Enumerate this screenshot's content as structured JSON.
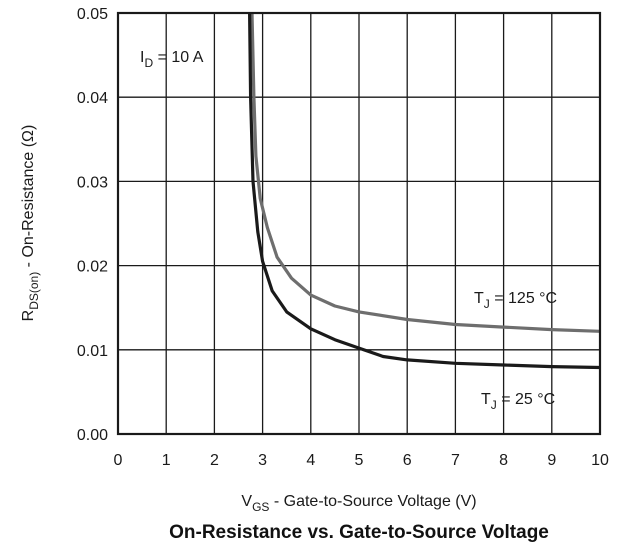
{
  "chart_data": {
    "type": "line",
    "title": "On-Resistance vs. Gate-to-Source Voltage",
    "xlabel": {
      "main": "V",
      "sub": "GS",
      "rest": " - Gate-to-Source Voltage (V)"
    },
    "ylabel": {
      "main": "R",
      "sub": "DS(on)",
      "rest": " - On-Resistance (Ω)"
    },
    "xlim": [
      0,
      10
    ],
    "ylim": [
      0,
      0.05
    ],
    "xticks": [
      "0",
      "1",
      "2",
      "3",
      "4",
      "5",
      "6",
      "7",
      "8",
      "9",
      "10"
    ],
    "yticks": [
      "0.00",
      "0.01",
      "0.02",
      "0.03",
      "0.04",
      "0.05"
    ],
    "grid": true,
    "annotation": {
      "main": "I",
      "sub": "D",
      "rest": " = 10 A"
    },
    "series": [
      {
        "name": {
          "main": "T",
          "sub": "J",
          "rest": " = 125 °C"
        },
        "color": "#6e6e6e",
        "points": [
          [
            2.78,
            0.05
          ],
          [
            2.82,
            0.04
          ],
          [
            2.86,
            0.033
          ],
          [
            2.95,
            0.028
          ],
          [
            3.1,
            0.0245
          ],
          [
            3.3,
            0.021
          ],
          [
            3.6,
            0.0185
          ],
          [
            4.0,
            0.0165
          ],
          [
            4.5,
            0.0152
          ],
          [
            5.0,
            0.0145
          ],
          [
            6.0,
            0.0136
          ],
          [
            7.0,
            0.013
          ],
          [
            8.0,
            0.0127
          ],
          [
            9.0,
            0.0124
          ],
          [
            10.0,
            0.0122
          ]
        ]
      },
      {
        "name": {
          "main": "T",
          "sub": "J",
          "rest": " = 25 °C"
        },
        "color": "#1a1a1a",
        "points": [
          [
            2.73,
            0.05
          ],
          [
            2.75,
            0.04
          ],
          [
            2.8,
            0.03
          ],
          [
            2.9,
            0.024
          ],
          [
            3.0,
            0.0205
          ],
          [
            3.2,
            0.017
          ],
          [
            3.5,
            0.0145
          ],
          [
            4.0,
            0.0125
          ],
          [
            4.5,
            0.0112
          ],
          [
            5.0,
            0.0102
          ],
          [
            5.5,
            0.0092
          ],
          [
            6.0,
            0.0088
          ],
          [
            7.0,
            0.0084
          ],
          [
            8.0,
            0.0082
          ],
          [
            9.0,
            0.008
          ],
          [
            10.0,
            0.0079
          ]
        ]
      }
    ]
  }
}
